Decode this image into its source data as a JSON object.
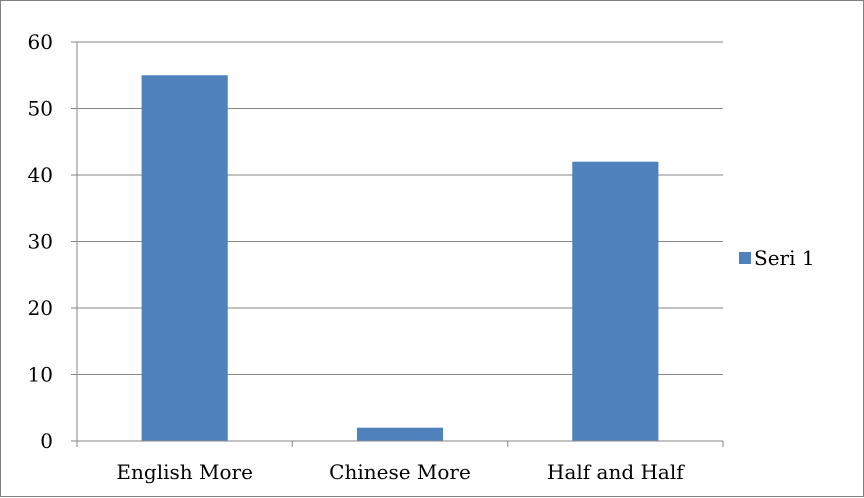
{
  "chart_data": {
    "type": "bar",
    "title": "",
    "xlabel": "",
    "ylabel": "",
    "categories": [
      "English More",
      "Chinese More",
      "Half and Half"
    ],
    "series": [
      {
        "name": "Seri 1",
        "values": [
          55,
          2,
          42
        ],
        "color": "#4F81BD"
      }
    ],
    "ylim": [
      0,
      60
    ],
    "yticks": [
      0,
      10,
      20,
      30,
      40,
      50,
      60
    ],
    "ytick_labels": [
      "0",
      "10",
      "20",
      "30",
      "40",
      "50",
      "60"
    ],
    "grid": "horizontal",
    "legend_position": "right"
  }
}
